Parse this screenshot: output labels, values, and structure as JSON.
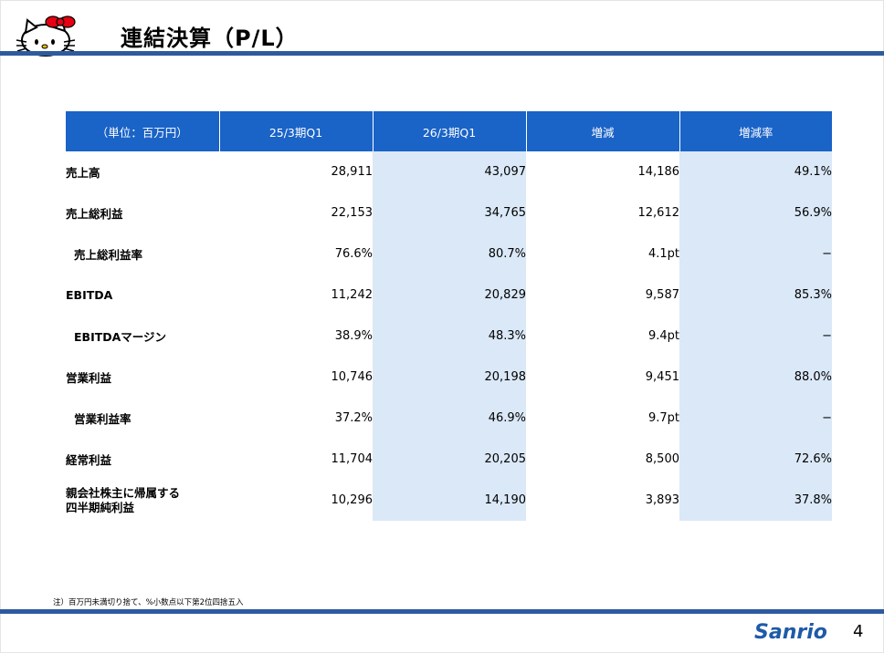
{
  "title": "連結決算（P/L）",
  "table": {
    "headers": [
      "（単位：百万円）",
      "25/3期Q1",
      "26/3期Q1",
      "増減",
      "増減率"
    ],
    "rows": [
      {
        "label": "売上高",
        "sub": false,
        "values": [
          "28,911",
          "43,097",
          "14,186",
          "49.1%"
        ]
      },
      {
        "label": "売上総利益",
        "sub": false,
        "values": [
          "22,153",
          "34,765",
          "12,612",
          "56.9%"
        ]
      },
      {
        "label": "売上総利益率",
        "sub": true,
        "values": [
          "76.6%",
          "80.7%",
          "4.1pt",
          "−"
        ]
      },
      {
        "label": "EBITDA",
        "sub": false,
        "values": [
          "11,242",
          "20,829",
          "9,587",
          "85.3%"
        ]
      },
      {
        "label": "EBITDAマージン",
        "sub": true,
        "values": [
          "38.9%",
          "48.3%",
          "9.4pt",
          "−"
        ]
      },
      {
        "label": "営業利益",
        "sub": false,
        "values": [
          "10,746",
          "20,198",
          "9,451",
          "88.0%"
        ]
      },
      {
        "label": "営業利益率",
        "sub": true,
        "values": [
          "37.2%",
          "46.9%",
          "9.7pt",
          "−"
        ]
      },
      {
        "label": "経常利益",
        "sub": false,
        "values": [
          "11,704",
          "20,205",
          "8,500",
          "72.6%"
        ]
      },
      {
        "label": "親会社株主に帰属する四半期純利益",
        "label_lines": [
          "親会社株主に帰属する",
          "四半期純利益"
        ],
        "sub": false,
        "values": [
          "10,296",
          "14,190",
          "3,893",
          "37.8%"
        ]
      }
    ]
  },
  "footnote": "注）百万円未満切り捨て、%小数点以下第2位四捨五入",
  "page_number": "4",
  "logos": {
    "left": "hello-kitty-logo",
    "right": "Sanrio"
  },
  "colors": {
    "header_blue": "#1a63c7",
    "rule_blue": "#2e5b9f",
    "shade_blue": "#dae8f7",
    "kitty_bow": "#e60012",
    "sanrio_logo": "#1e5aa8"
  }
}
